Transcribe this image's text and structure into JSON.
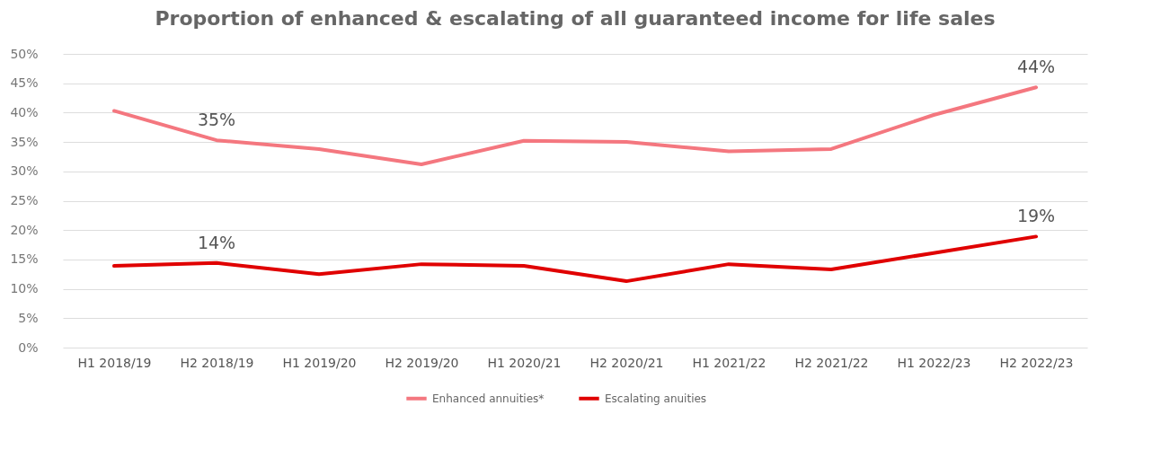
{
  "chart_data": {
    "type": "line",
    "title": "Proportion of enhanced & escalating of all guaranteed income for life sales",
    "categories": [
      "H1 2018/19",
      "H2 2018/19",
      "H1 2019/20",
      "H2 2019/20",
      "H1 2020/21",
      "H2 2020/21",
      "H1 2021/22",
      "H2 2021/22",
      "H1 2022/23",
      "H2 2022/23"
    ],
    "series": [
      {
        "name": "Enhanced annuities*",
        "color": "#f4777f",
        "values": [
          40.3,
          35.3,
          33.8,
          31.2,
          35.2,
          35.0,
          33.4,
          33.8,
          39.6,
          44.3
        ],
        "value_labels": [
          null,
          "35%",
          null,
          null,
          null,
          null,
          null,
          null,
          null,
          "44%"
        ]
      },
      {
        "name": "Escalating anuities",
        "color": "#e00000",
        "values": [
          13.9,
          14.4,
          12.5,
          14.2,
          13.9,
          11.3,
          14.2,
          13.3,
          16.1,
          18.9
        ],
        "value_labels": [
          null,
          "14%",
          null,
          null,
          null,
          null,
          null,
          null,
          null,
          "19%"
        ]
      }
    ],
    "ylim": [
      0,
      50
    ],
    "yticks": [
      {
        "value": 0,
        "label": "0%"
      },
      {
        "value": 5,
        "label": "5%"
      },
      {
        "value": 10,
        "label": "10%"
      },
      {
        "value": 15,
        "label": "15%"
      },
      {
        "value": 20,
        "label": "20%"
      },
      {
        "value": 25,
        "label": "25%"
      },
      {
        "value": 30,
        "label": "30%"
      },
      {
        "value": 35,
        "label": "35%"
      },
      {
        "value": 40,
        "label": "40%"
      },
      {
        "value": 45,
        "label": "45%"
      },
      {
        "value": 50,
        "label": "50%"
      }
    ],
    "grid": "y",
    "legend": "bottom",
    "marker": "none",
    "line_style": "solid"
  }
}
